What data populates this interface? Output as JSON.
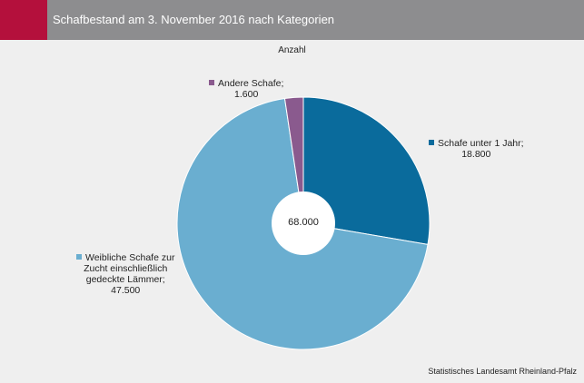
{
  "header": {
    "title": "Schafbestand am 3. November 2016 nach Kategorien",
    "accent_color": "#b4103c",
    "bar_color": "#8d8d8f"
  },
  "chart_data": {
    "type": "pie",
    "donut": true,
    "unit_label": "Anzahl",
    "total_label": "68.000",
    "legend": "none",
    "slices": [
      {
        "label_lines": [
          "Schafe unter 1 Jahr;",
          "18.800"
        ],
        "value": 18800,
        "color": "#0a6b9c"
      },
      {
        "label_lines": [
          "Weibliche Schafe zur",
          "Zucht einschließlich",
          "gedeckte Lämmer;",
          "47.500"
        ],
        "value": 47500,
        "color": "#6aaed0"
      },
      {
        "label_lines": [
          "Andere Schafe;",
          "1.600"
        ],
        "value": 1600,
        "color": "#8a5a8e"
      }
    ]
  },
  "footer": {
    "source": "Statistisches Landesamt Rheinland-Pfalz"
  }
}
